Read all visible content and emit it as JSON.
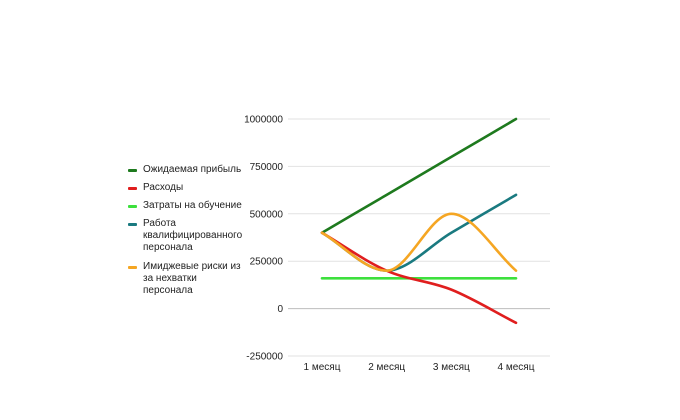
{
  "chart_data": {
    "type": "line",
    "title": "",
    "xlabel": "",
    "ylabel": "",
    "categories": [
      "1 месяц",
      "2 месяц",
      "3 месяц",
      "4 месяц"
    ],
    "ylim": [
      -250000,
      1000000
    ],
    "yticks": [
      1000000,
      750000,
      500000,
      250000,
      0,
      -250000
    ],
    "ytick_labels": [
      "1000000",
      "750000",
      "500000",
      "250000",
      "0",
      "-250000"
    ],
    "grid": true,
    "legend_position": "left",
    "smooth": true,
    "series": [
      {
        "name": "Ожидаемая прибыль",
        "color": "#1e7a1e",
        "values": [
          400000,
          600000,
          800000,
          1000000
        ]
      },
      {
        "name": "Расходы",
        "color": "#e01e1e",
        "values": [
          400000,
          200000,
          100000,
          -75000
        ]
      },
      {
        "name": "Затраты на обучение",
        "color": "#3de03d",
        "values": [
          160000,
          160000,
          160000,
          160000
        ]
      },
      {
        "name": "Работа квалифицированного персонала",
        "color": "#1a7a80",
        "values": [
          400000,
          200000,
          400000,
          600000
        ]
      },
      {
        "name": "Имиджевые риски из за нехватки персонала",
        "color": "#f5a623",
        "values": [
          400000,
          200000,
          500000,
          200000
        ]
      }
    ]
  }
}
